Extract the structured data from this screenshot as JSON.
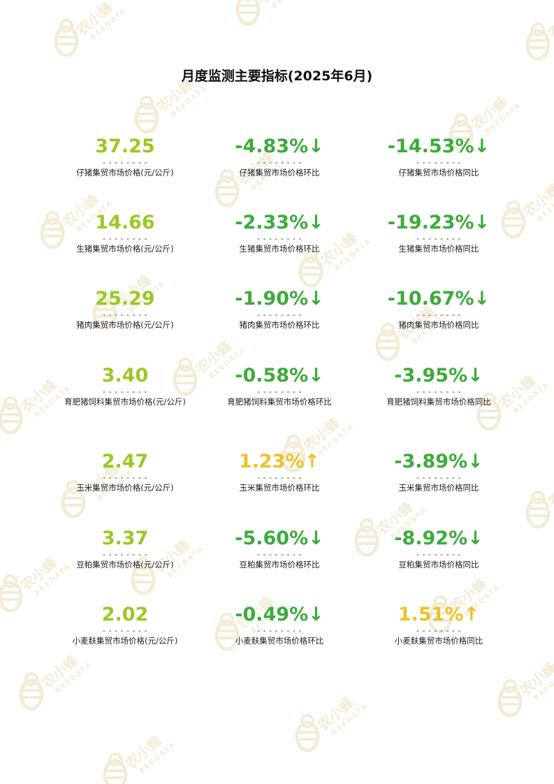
{
  "title": "月度监测主要指标(2025年6月)",
  "colors": {
    "price": "#9ac824",
    "down": "#3cab3c",
    "up": "#f0c028",
    "title": "#111111",
    "watermark": "#f2ead2"
  },
  "separator": "- - - - - - - -",
  "watermark": {
    "text_cn": "农小蜂",
    "text_en": "BEEDATA",
    "icon": "bee-logo-icon"
  },
  "rows": [
    {
      "price": {
        "value": "37.25",
        "label": "仔猪集贸市场价格(元/公斤)"
      },
      "mom": {
        "value": "-4.83%↓",
        "label": "仔猪集贸市场价格环比",
        "trend": "down"
      },
      "yoy": {
        "value": "-14.53%↓",
        "label": "仔猪集贸市场价格同比",
        "trend": "down"
      }
    },
    {
      "price": {
        "value": "14.66",
        "label": "生猪集贸市场价格(元/公斤)"
      },
      "mom": {
        "value": "-2.33%↓",
        "label": "生猪集贸市场价格环比",
        "trend": "down"
      },
      "yoy": {
        "value": "-19.23%↓",
        "label": "生猪集贸市场价格同比",
        "trend": "down"
      }
    },
    {
      "price": {
        "value": "25.29",
        "label": "猪肉集贸市场价格(元/公斤)"
      },
      "mom": {
        "value": "-1.90%↓",
        "label": "猪肉集贸市场价格环比",
        "trend": "down"
      },
      "yoy": {
        "value": "-10.67%↓",
        "label": "猪肉集贸市场价格同比",
        "trend": "down"
      }
    },
    {
      "price": {
        "value": "3.40",
        "label": "育肥猪饲料集贸市场价格(元/公斤)"
      },
      "mom": {
        "value": "-0.58%↓",
        "label": "育肥猪饲料集贸市场价格环比",
        "trend": "down"
      },
      "yoy": {
        "value": "-3.95%↓",
        "label": "育肥猪饲料集贸市场价格同比",
        "trend": "down"
      }
    },
    {
      "price": {
        "value": "2.47",
        "label": "玉米集贸市场价格(元/公斤)"
      },
      "mom": {
        "value": "1.23%↑",
        "label": "玉米集贸市场价格环比",
        "trend": "up"
      },
      "yoy": {
        "value": "-3.89%↓",
        "label": "玉米集贸市场价格同比",
        "trend": "down"
      }
    },
    {
      "price": {
        "value": "3.37",
        "label": "豆粕集贸市场价格(元/公斤)"
      },
      "mom": {
        "value": "-5.60%↓",
        "label": "豆粕集贸市场价格环比",
        "trend": "down"
      },
      "yoy": {
        "value": "-8.92%↓",
        "label": "豆粕集贸市场价格同比",
        "trend": "down"
      }
    },
    {
      "price": {
        "value": "2.02",
        "label": "小麦麸集贸市场价格(元/公斤)"
      },
      "mom": {
        "value": "-0.49%↓",
        "label": "小麦麸集贸市场价格环比",
        "trend": "down"
      },
      "yoy": {
        "value": "1.51%↑",
        "label": "小麦麸集贸市场价格同比",
        "trend": "up"
      }
    }
  ]
}
